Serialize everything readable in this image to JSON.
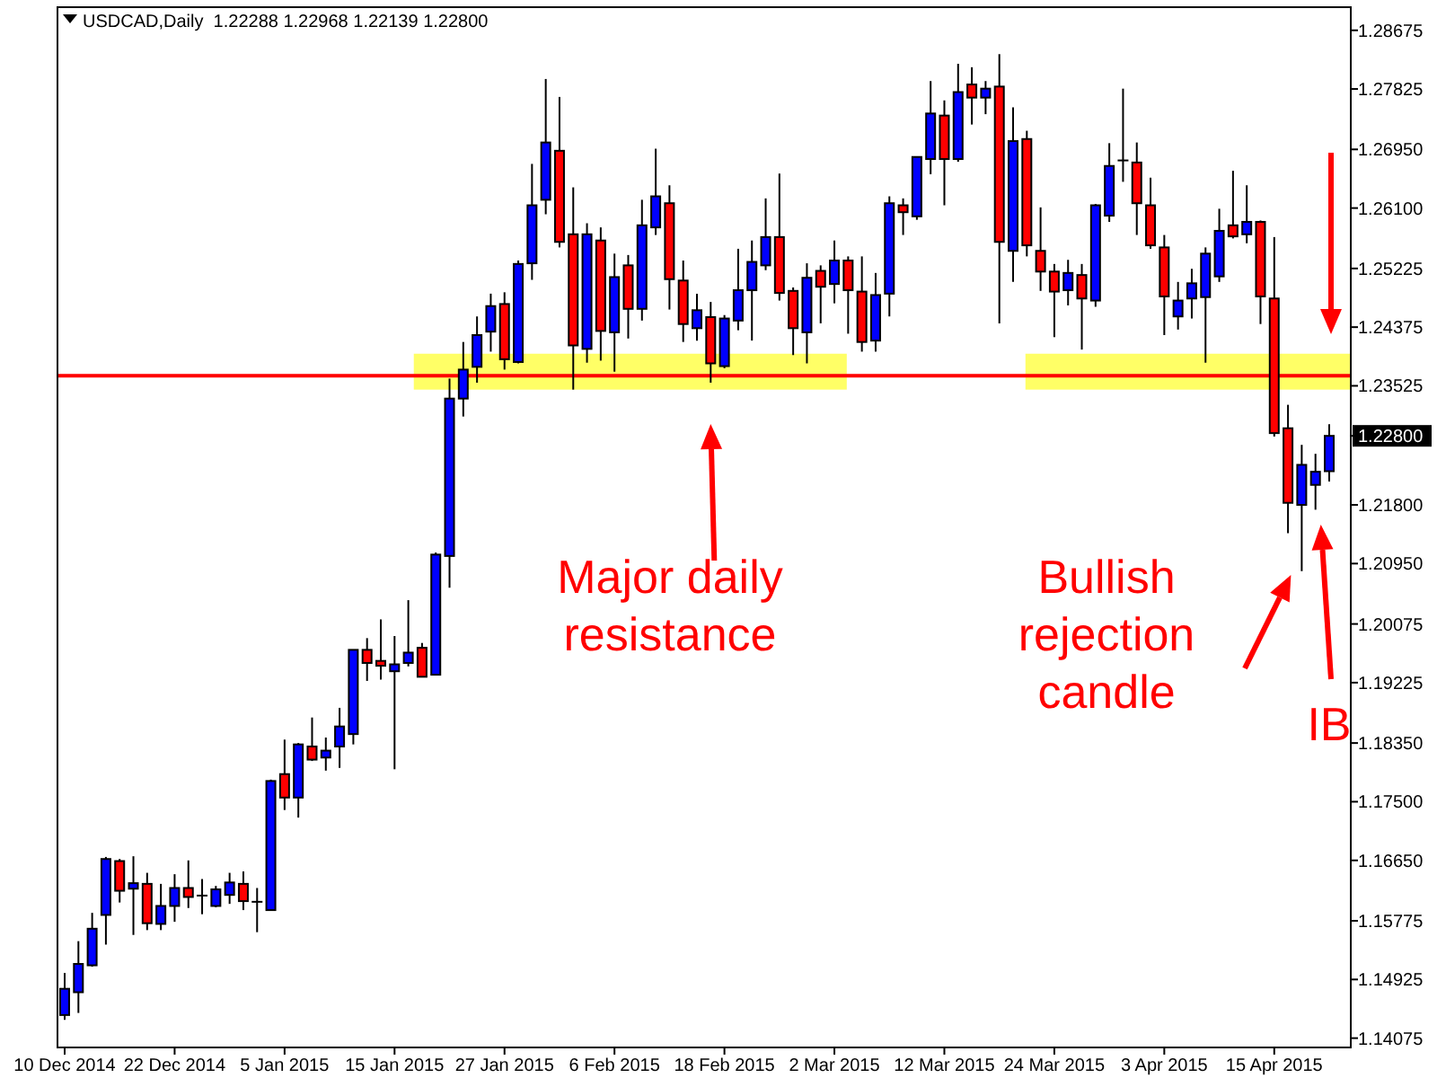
{
  "chart_data": {
    "type": "candlestick",
    "title": "USDCAD,Daily  1.22288 1.22968 1.22139 1.22800",
    "categories": [
      "10 Dec 2014",
      null,
      null,
      null,
      null,
      null,
      null,
      null,
      "22 Dec 2014",
      null,
      null,
      null,
      null,
      null,
      null,
      null,
      "5 Jan 2015",
      null,
      null,
      null,
      null,
      null,
      null,
      null,
      "15 Jan 2015",
      null,
      null,
      null,
      null,
      null,
      null,
      null,
      "27 Jan 2015",
      null,
      null,
      null,
      null,
      null,
      null,
      null,
      "6 Feb 2015",
      null,
      null,
      null,
      null,
      null,
      null,
      null,
      "18 Feb 2015",
      null,
      null,
      null,
      null,
      null,
      null,
      null,
      "2 Mar 2015",
      null,
      null,
      null,
      null,
      null,
      null,
      null,
      "12 Mar 2015",
      null,
      null,
      null,
      null,
      null,
      null,
      null,
      "24 Mar 2015",
      null,
      null,
      null,
      null,
      null,
      null,
      null,
      "3 Apr 2015",
      null,
      null,
      null,
      null,
      null,
      null,
      null,
      "15 Apr 2015",
      null,
      null,
      null,
      null
    ],
    "ohlc": [
      [
        1.1441,
        1.1502,
        1.1434,
        1.1479
      ],
      [
        1.1474,
        1.1548,
        1.1444,
        1.1515
      ],
      [
        1.1513,
        1.1589,
        1.1511,
        1.1566
      ],
      [
        1.1586,
        1.167,
        1.1543,
        1.1667
      ],
      [
        1.1664,
        1.1667,
        1.1604,
        1.1621
      ],
      [
        1.1624,
        1.1671,
        1.1557,
        1.1632
      ],
      [
        1.1631,
        1.1647,
        1.1564,
        1.1574
      ],
      [
        1.1573,
        1.1631,
        1.1564,
        1.1599
      ],
      [
        1.1599,
        1.1645,
        1.1576,
        1.1625
      ],
      [
        1.1625,
        1.1665,
        1.1596,
        1.1612
      ],
      [
        1.1614,
        1.1638,
        1.1587,
        1.1614
      ],
      [
        1.1599,
        1.1628,
        1.1597,
        1.1623
      ],
      [
        1.1615,
        1.1647,
        1.1602,
        1.1633
      ],
      [
        1.1631,
        1.1649,
        1.1593,
        1.1606
      ],
      [
        1.1605,
        1.1625,
        1.1561,
        1.1605
      ],
      [
        1.1593,
        1.1782,
        1.1593,
        1.178
      ],
      [
        1.179,
        1.184,
        1.1738,
        1.1756
      ],
      [
        1.1756,
        1.1835,
        1.1727,
        1.1833
      ],
      [
        1.183,
        1.1872,
        1.1809,
        1.1811
      ],
      [
        1.1814,
        1.1843,
        1.1795,
        1.1824
      ],
      [
        1.183,
        1.1886,
        1.1799,
        1.1859
      ],
      [
        1.1848,
        1.197,
        1.1833,
        1.197
      ],
      [
        1.197,
        1.1987,
        1.1925,
        1.1951
      ],
      [
        1.1954,
        1.2014,
        1.1927,
        1.1947
      ],
      [
        1.1939,
        1.199,
        1.1797,
        1.1949
      ],
      [
        1.1951,
        1.2042,
        1.1946,
        1.1966
      ],
      [
        1.1973,
        1.198,
        1.1931,
        1.1931
      ],
      [
        1.1934,
        1.2111,
        1.1934,
        1.2108
      ],
      [
        1.2106,
        1.2363,
        1.206,
        1.2334
      ],
      [
        1.2334,
        1.2416,
        1.2308,
        1.2376
      ],
      [
        1.238,
        1.2453,
        1.2357,
        1.2426
      ],
      [
        1.2431,
        1.2486,
        1.2402,
        1.2468
      ],
      [
        1.2471,
        1.2488,
        1.2376,
        1.2391
      ],
      [
        1.2387,
        1.2534,
        1.2385,
        1.2529
      ],
      [
        1.253,
        1.2674,
        1.2506,
        1.2614
      ],
      [
        1.2622,
        1.2797,
        1.2601,
        1.2705
      ],
      [
        1.2693,
        1.2771,
        1.2553,
        1.2561
      ],
      [
        1.2572,
        1.264,
        1.2347,
        1.2411
      ],
      [
        1.2406,
        1.2588,
        1.2386,
        1.2572
      ],
      [
        1.2563,
        1.2582,
        1.2389,
        1.2432
      ],
      [
        1.243,
        1.2544,
        1.2373,
        1.251
      ],
      [
        1.2527,
        1.2542,
        1.2421,
        1.2464
      ],
      [
        1.2464,
        1.2622,
        1.2447,
        1.2585
      ],
      [
        1.2582,
        1.2696,
        1.2571,
        1.2627
      ],
      [
        1.2617,
        1.2643,
        1.2463,
        1.2507
      ],
      [
        1.2505,
        1.2534,
        1.2416,
        1.2442
      ],
      [
        1.2436,
        1.2486,
        1.2418,
        1.2462
      ],
      [
        1.2452,
        1.2474,
        1.2357,
        1.2385
      ],
      [
        1.2381,
        1.2455,
        1.2378,
        1.245
      ],
      [
        1.2447,
        1.2551,
        1.2433,
        1.2491
      ],
      [
        1.2491,
        1.2563,
        1.2418,
        1.2532
      ],
      [
        1.2527,
        1.2624,
        1.252,
        1.2568
      ],
      [
        1.2568,
        1.266,
        1.2476,
        1.2487
      ],
      [
        1.249,
        1.2495,
        1.2397,
        1.2436
      ],
      [
        1.243,
        1.253,
        1.2385,
        1.2509
      ],
      [
        1.2519,
        1.2527,
        1.2443,
        1.2496
      ],
      [
        1.25,
        1.2563,
        1.2472,
        1.2534
      ],
      [
        1.2534,
        1.254,
        1.2428,
        1.2491
      ],
      [
        1.2489,
        1.254,
        1.2402,
        1.2416
      ],
      [
        1.2418,
        1.2516,
        1.2402,
        1.2484
      ],
      [
        1.2486,
        1.2627,
        1.2453,
        1.2617
      ],
      [
        1.2614,
        1.2624,
        1.2571,
        1.2604
      ],
      [
        1.2598,
        1.2684,
        1.2593,
        1.2684
      ],
      [
        1.2681,
        1.2794,
        1.2659,
        1.2747
      ],
      [
        1.2744,
        1.2766,
        1.2614,
        1.2681
      ],
      [
        1.2681,
        1.2819,
        1.2677,
        1.2778
      ],
      [
        1.2789,
        1.2814,
        1.2731,
        1.277
      ],
      [
        1.277,
        1.2794,
        1.2746,
        1.2783
      ],
      [
        1.2786,
        1.2833,
        1.2443,
        1.2561
      ],
      [
        1.2548,
        1.2756,
        1.2503,
        1.2707
      ],
      [
        1.271,
        1.2722,
        1.254,
        1.2556
      ],
      [
        1.2548,
        1.2611,
        1.249,
        1.2518
      ],
      [
        1.2518,
        1.2529,
        1.2423,
        1.2489
      ],
      [
        1.2491,
        1.2535,
        1.2469,
        1.2516
      ],
      [
        1.2513,
        1.2529,
        1.2405,
        1.2479
      ],
      [
        1.2476,
        1.2616,
        1.2467,
        1.2614
      ],
      [
        1.2599,
        1.2704,
        1.259,
        1.2671
      ],
      [
        1.2679,
        1.2783,
        1.2648,
        1.2679
      ],
      [
        1.2676,
        1.2705,
        1.2571,
        1.2617
      ],
      [
        1.2614,
        1.2654,
        1.2551,
        1.2556
      ],
      [
        1.2553,
        1.2571,
        1.2426,
        1.2482
      ],
      [
        1.2453,
        1.2503,
        1.2434,
        1.2476
      ],
      [
        1.2479,
        1.2522,
        1.245,
        1.2501
      ],
      [
        1.2481,
        1.2553,
        1.2386,
        1.2544
      ],
      [
        1.2511,
        1.2609,
        1.2503,
        1.2577
      ],
      [
        1.2585,
        1.2664,
        1.2566,
        1.2569
      ],
      [
        1.2572,
        1.2643,
        1.2559,
        1.259
      ],
      [
        1.259,
        1.2592,
        1.2442,
        1.2482
      ],
      [
        1.2479,
        1.2568,
        1.2279,
        1.2284
      ],
      [
        1.2291,
        1.2325,
        1.2139,
        1.2183
      ],
      [
        1.218,
        1.2267,
        1.2084,
        1.2238
      ],
      [
        1.2209,
        1.2254,
        1.2173,
        1.2228
      ],
      [
        1.22288,
        1.22968,
        1.22139,
        1.228
      ]
    ],
    "colors": [
      "#0000ff",
      "#0000ff",
      "#0000ff",
      "#0000ff",
      "#ff0000",
      "#0000ff",
      "#ff0000",
      "#0000ff",
      "#0000ff",
      "#ff0000",
      "#000000",
      "#0000ff",
      "#0000ff",
      "#ff0000",
      "#000000",
      "#0000ff",
      "#ff0000",
      "#0000ff",
      "#ff0000",
      "#0000ff",
      "#0000ff",
      "#0000ff",
      "#ff0000",
      "#ff0000",
      "#0000ff",
      "#0000ff",
      "#ff0000",
      "#0000ff",
      "#0000ff",
      "#0000ff",
      "#0000ff",
      "#0000ff",
      "#ff0000",
      "#0000ff",
      "#0000ff",
      "#0000ff",
      "#ff0000",
      "#ff0000",
      "#0000ff",
      "#ff0000",
      "#0000ff",
      "#ff0000",
      "#0000ff",
      "#0000ff",
      "#ff0000",
      "#ff0000",
      "#0000ff",
      "#ff0000",
      "#0000ff",
      "#0000ff",
      "#0000ff",
      "#0000ff",
      "#ff0000",
      "#ff0000",
      "#0000ff",
      "#ff0000",
      "#0000ff",
      "#ff0000",
      "#ff0000",
      "#0000ff",
      "#0000ff",
      "#ff0000",
      "#0000ff",
      "#0000ff",
      "#ff0000",
      "#0000ff",
      "#ff0000",
      "#0000ff",
      "#ff0000",
      "#0000ff",
      "#ff0000",
      "#ff0000",
      "#ff0000",
      "#0000ff",
      "#ff0000",
      "#0000ff",
      "#0000ff",
      "#000000",
      "#ff0000",
      "#ff0000",
      "#ff0000",
      "#0000ff",
      "#0000ff",
      "#0000ff",
      "#0000ff",
      "#ff0000",
      "#0000ff",
      "#ff0000",
      "#ff0000",
      "#ff0000",
      "#0000ff",
      "#0000ff",
      "#0000ff"
    ],
    "ylim": [
      1.1394,
      1.2901
    ],
    "yticks": [
      1.14075,
      {
        "value": 1.14925,
        "label": "1.14925"
      },
      1.15775,
      {
        "value": 1.1665,
        "label": "1.16650"
      },
      {
        "value": 1.175,
        "label": "1.17500"
      },
      {
        "value": 1.1835,
        "label": "1.18350"
      },
      1.19225,
      1.20075,
      {
        "value": 1.2095,
        "label": "1.20950"
      },
      {
        "value": 1.218,
        "label": "1.21800"
      },
      {
        "value": 1.228,
        "label": "1.22800"
      },
      1.23525,
      1.24375,
      1.25225,
      {
        "value": 1.261,
        "label": "1.26100"
      },
      {
        "value": 1.2695,
        "label": "1.26950"
      },
      1.27825,
      1.28675
    ],
    "ref_lines": [
      {
        "axis": "y",
        "value": 1.2367,
        "color": "#ff0000"
      }
    ],
    "bands": [
      {
        "axis": "y",
        "from": 1.2347,
        "to": 1.2399,
        "color": "#ffff66"
      },
      {
        "axis": "y",
        "from": 1.2347,
        "to": 1.2399,
        "color": "#ffff66"
      }
    ],
    "annotations": [
      "Major daily resistance",
      "Bullish rejection candle",
      "IB"
    ]
  }
}
